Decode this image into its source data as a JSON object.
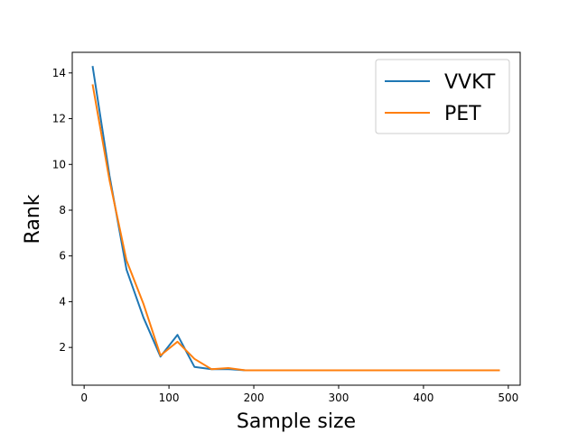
{
  "chart_data": {
    "type": "line",
    "title": "",
    "xlabel": "Sample size",
    "ylabel": "Rank",
    "xlim": [
      -14,
      514
    ],
    "ylim": [
      0.35,
      14.9
    ],
    "xticks": [
      0,
      100,
      200,
      300,
      400,
      500
    ],
    "yticks": [
      2,
      4,
      6,
      8,
      10,
      12,
      14
    ],
    "grid": false,
    "legend_position": "top-right",
    "x": [
      10,
      30,
      50,
      70,
      90,
      110,
      130,
      150,
      170,
      190,
      210,
      230,
      250,
      270,
      290,
      310,
      330,
      350,
      370,
      390,
      410,
      430,
      450,
      470,
      490
    ],
    "series": [
      {
        "name": "VVKT",
        "color": "#1f77b4",
        "values": [
          14.3,
          9.5,
          5.4,
          3.3,
          1.6,
          2.55,
          1.15,
          1.05,
          1.05,
          1.0,
          1.0,
          1.0,
          1.0,
          1.0,
          1.0,
          1.0,
          1.0,
          1.0,
          1.0,
          1.0,
          1.0,
          1.0,
          1.0,
          1.0,
          1.0
        ]
      },
      {
        "name": "PET",
        "color": "#ff7f0e",
        "values": [
          13.5,
          9.3,
          5.8,
          3.9,
          1.65,
          2.25,
          1.5,
          1.05,
          1.1,
          1.0,
          1.0,
          1.0,
          1.0,
          1.0,
          1.0,
          1.0,
          1.0,
          1.0,
          1.0,
          1.0,
          1.0,
          1.0,
          1.0,
          1.0,
          1.0
        ]
      }
    ]
  }
}
